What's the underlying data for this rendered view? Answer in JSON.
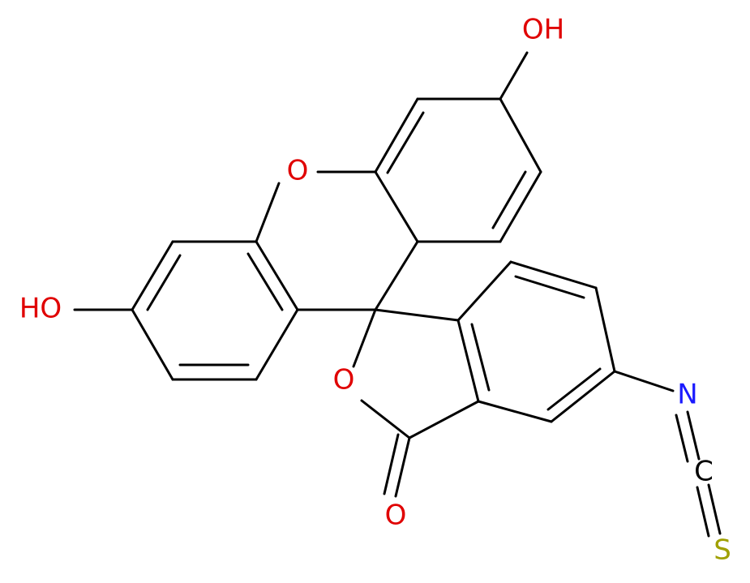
{
  "nodes": [
    {
      "label": "OH"
    },
    {
      "label": "O"
    },
    {
      "label": "HO"
    },
    {
      "label": "O"
    },
    {
      "label": "O"
    },
    {
      "label": "N"
    },
    {
      "label": "C"
    },
    {
      "label": "S"
    }
  ]
}
